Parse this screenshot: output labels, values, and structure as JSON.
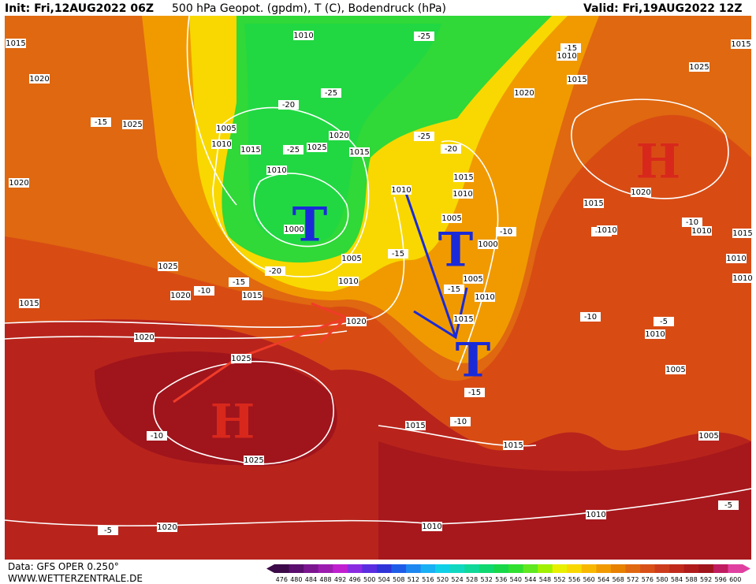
{
  "header": {
    "init": "Init: Fri,12AUG2022 06Z",
    "title": "500 hPa Geopot. (gpdm), T (C), Bodendruck (hPa)",
    "valid": "Valid: Fri,19AUG2022 12Z"
  },
  "systems": [
    {
      "label": "H"
    },
    {
      "label": "H"
    },
    {
      "label": "T"
    },
    {
      "label": "T"
    },
    {
      "label": "T"
    }
  ],
  "map_labels": [
    "1010",
    "1015",
    "1020",
    "1025",
    "-15",
    "1005",
    "1010",
    "1015",
    "-20",
    "-25",
    "1025",
    "1020",
    "-25",
    "1015",
    "1010",
    "1000",
    "1005",
    "1010",
    "-20",
    "1025",
    "1020",
    "-10",
    "-15",
    "1015",
    "1015",
    "1020",
    "1020",
    "1025",
    "-10",
    "1025",
    "-5",
    "1020",
    "1010",
    "1015",
    "1015",
    "-10",
    "-15",
    "1015",
    "-15",
    "1010",
    "1005",
    "1000",
    "-10",
    "1005",
    "-15",
    "1010",
    "1015",
    "-20",
    "1010",
    "-25",
    "-25",
    "1010",
    "-15",
    "1015",
    "1020",
    "1025",
    "1020",
    "1015",
    "-10",
    "1010",
    "-10",
    "1010",
    "1015",
    "1010",
    "1010",
    "-10",
    "1010",
    "-5",
    "1005",
    "1005",
    "-5",
    "1010",
    "1015",
    "1020"
  ],
  "footer": {
    "data": "Data: GFS OPER 0.250°",
    "site": "WWW.WETTERZENTRALE.DE"
  },
  "colorbar": {
    "ticks": [
      476,
      480,
      484,
      488,
      492,
      496,
      500,
      504,
      508,
      512,
      516,
      520,
      524,
      528,
      532,
      536,
      540,
      544,
      548,
      552,
      556,
      560,
      564,
      568,
      572,
      576,
      580,
      584,
      588,
      592,
      596,
      600
    ],
    "colors": [
      "#3c0a49",
      "#5a0e6e",
      "#7b1690",
      "#9d1cb0",
      "#c01fd0",
      "#8a2be2",
      "#5b2de0",
      "#2f34d8",
      "#1e5ce8",
      "#1e88f0",
      "#19b0f4",
      "#10d0e8",
      "#10d8c0",
      "#10d898",
      "#10d870",
      "#18d84a",
      "#30e030",
      "#60e820",
      "#a0f000",
      "#e8f000",
      "#f8d800",
      "#f8b800",
      "#f09a00",
      "#e88000",
      "#e06810",
      "#d85018",
      "#cc3c1c",
      "#c02a1c",
      "#b01c1c",
      "#a0141c",
      "#c01c60",
      "#e040a0"
    ]
  }
}
